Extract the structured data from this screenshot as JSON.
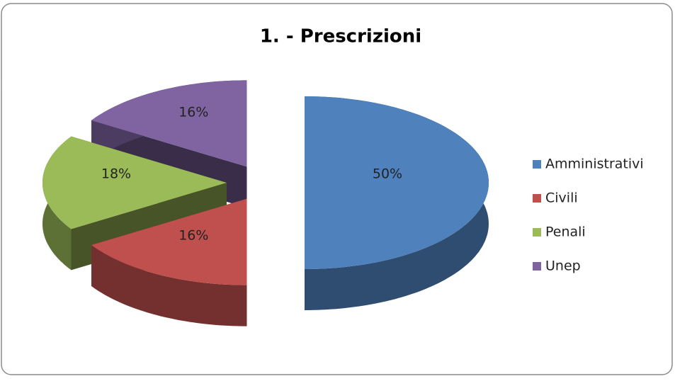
{
  "chart_data": {
    "type": "pie3d",
    "title": "1. - Prescrizioni",
    "categories": [
      "Amministrativi",
      "Civili",
      "Penali",
      "Unep"
    ],
    "values": [
      50,
      16,
      18,
      16
    ],
    "value_labels": [
      "50%",
      "16%",
      "18%",
      "16%"
    ],
    "colors": [
      "#4f81bd",
      "#c0504d",
      "#9bbb59",
      "#8064a2"
    ],
    "legend": "right"
  }
}
